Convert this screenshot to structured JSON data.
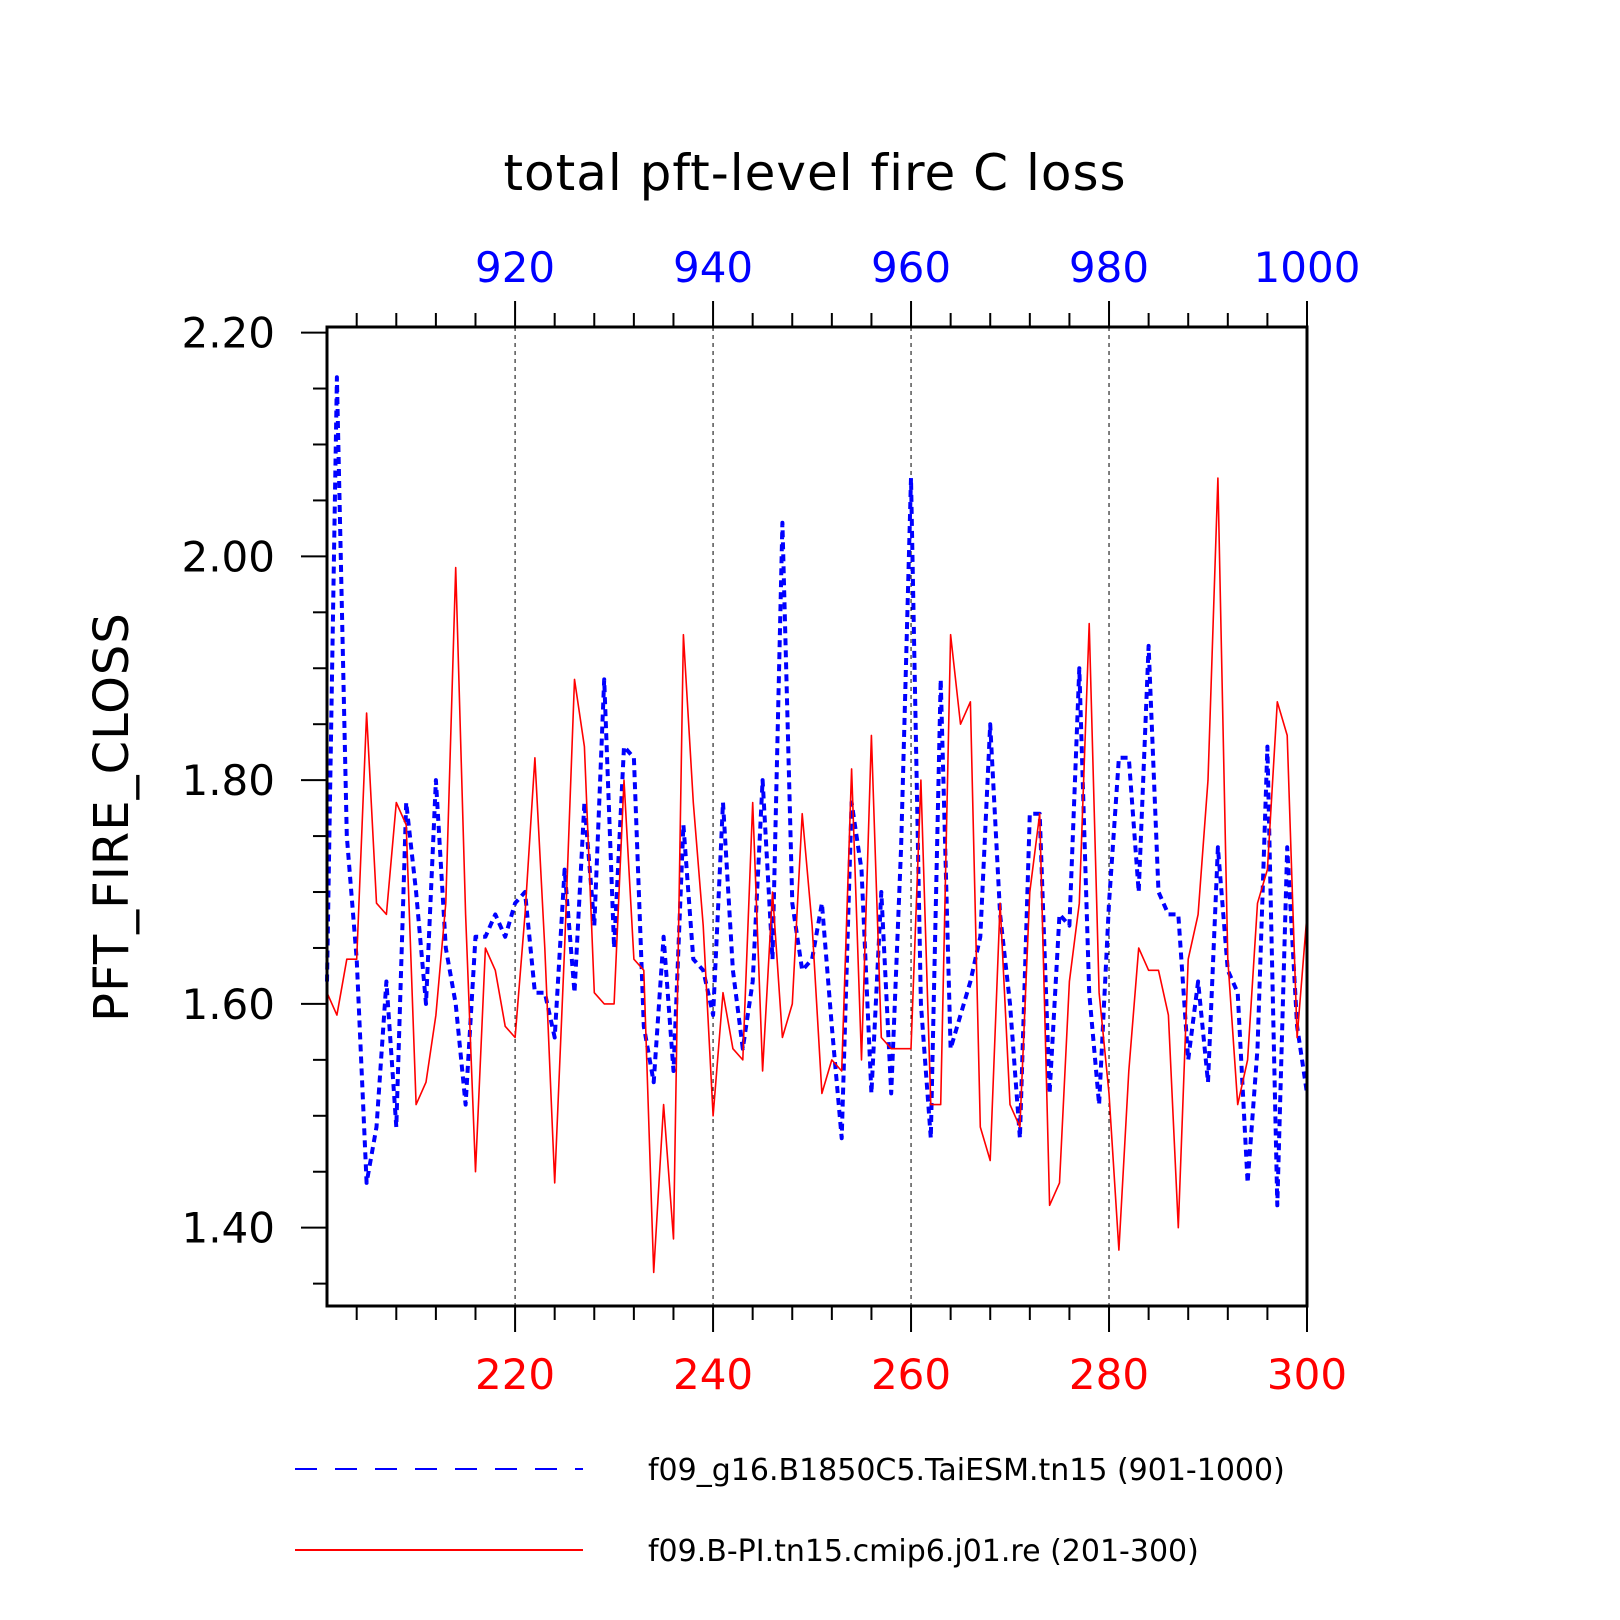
{
  "chart_data": {
    "type": "line",
    "title": "total pft-level fire C loss",
    "ylabel": "PFT_FIRE_CLOSS",
    "ylim": [
      1.33,
      2.205
    ],
    "yticks": [
      1.4,
      1.6,
      1.8,
      2.0,
      2.2
    ],
    "ytick_labels": [
      "1.40",
      "1.60",
      "1.80",
      "2.00",
      "2.20"
    ],
    "x_bottom": {
      "range": [
        201,
        300
      ],
      "ticks": [
        220,
        240,
        260,
        280,
        300
      ],
      "tick_labels": [
        "220",
        "240",
        "260",
        "280",
        "300"
      ],
      "color": "#ff0000"
    },
    "x_top": {
      "range": [
        901,
        1000
      ],
      "ticks": [
        920,
        940,
        960,
        980,
        1000
      ],
      "tick_labels": [
        "920",
        "940",
        "960",
        "980",
        "1000"
      ],
      "color": "#0000ff"
    },
    "grid": "vertical dashed at major x ticks",
    "legend_position": "bottom",
    "series": [
      {
        "name": "f09_g16.B1850C5.TaiESM.tn15 (901-1000)",
        "axis": "top",
        "color": "#0000ff",
        "style": "dashed",
        "x_start": 901,
        "values": [
          1.62,
          2.16,
          1.75,
          1.64,
          1.44,
          1.49,
          1.62,
          1.49,
          1.78,
          1.7,
          1.6,
          1.8,
          1.65,
          1.6,
          1.51,
          1.66,
          1.66,
          1.68,
          1.66,
          1.69,
          1.7,
          1.61,
          1.61,
          1.57,
          1.72,
          1.61,
          1.78,
          1.67,
          1.89,
          1.65,
          1.83,
          1.82,
          1.58,
          1.53,
          1.66,
          1.54,
          1.76,
          1.64,
          1.63,
          1.59,
          1.78,
          1.63,
          1.56,
          1.62,
          1.8,
          1.64,
          2.03,
          1.69,
          1.63,
          1.64,
          1.69,
          1.58,
          1.48,
          1.78,
          1.72,
          1.52,
          1.7,
          1.52,
          1.74,
          2.07,
          1.6,
          1.48,
          1.89,
          1.56,
          1.59,
          1.62,
          1.66,
          1.85,
          1.68,
          1.6,
          1.48,
          1.77,
          1.77,
          1.52,
          1.68,
          1.67,
          1.9,
          1.61,
          1.51,
          1.69,
          1.82,
          1.82,
          1.7,
          1.92,
          1.7,
          1.68,
          1.68,
          1.55,
          1.62,
          1.53,
          1.74,
          1.63,
          1.61,
          1.44,
          1.56,
          1.83,
          1.42,
          1.74,
          1.58,
          1.52
        ]
      },
      {
        "name": "f09.B-PI.tn15.cmip6.j01.re (201-300)",
        "axis": "bottom",
        "color": "#ff0000",
        "style": "solid",
        "x_start": 201,
        "values": [
          1.61,
          1.59,
          1.64,
          1.64,
          1.86,
          1.69,
          1.68,
          1.78,
          1.76,
          1.51,
          1.53,
          1.59,
          1.69,
          1.99,
          1.68,
          1.45,
          1.65,
          1.63,
          1.58,
          1.57,
          1.68,
          1.82,
          1.65,
          1.44,
          1.65,
          1.89,
          1.83,
          1.61,
          1.6,
          1.6,
          1.8,
          1.64,
          1.63,
          1.36,
          1.51,
          1.39,
          1.93,
          1.78,
          1.67,
          1.5,
          1.61,
          1.56,
          1.55,
          1.78,
          1.54,
          1.7,
          1.57,
          1.6,
          1.77,
          1.67,
          1.52,
          1.55,
          1.54,
          1.81,
          1.55,
          1.84,
          1.57,
          1.56,
          1.56,
          1.56,
          1.8,
          1.51,
          1.51,
          1.93,
          1.85,
          1.87,
          1.49,
          1.46,
          1.69,
          1.51,
          1.49,
          1.7,
          1.77,
          1.42,
          1.44,
          1.62,
          1.69,
          1.94,
          1.61,
          1.52,
          1.38,
          1.54,
          1.65,
          1.63,
          1.63,
          1.59,
          1.4,
          1.64,
          1.68,
          1.8,
          2.07,
          1.64,
          1.51,
          1.55,
          1.69,
          1.72,
          1.87,
          1.84,
          1.57,
          1.68
        ]
      }
    ]
  }
}
